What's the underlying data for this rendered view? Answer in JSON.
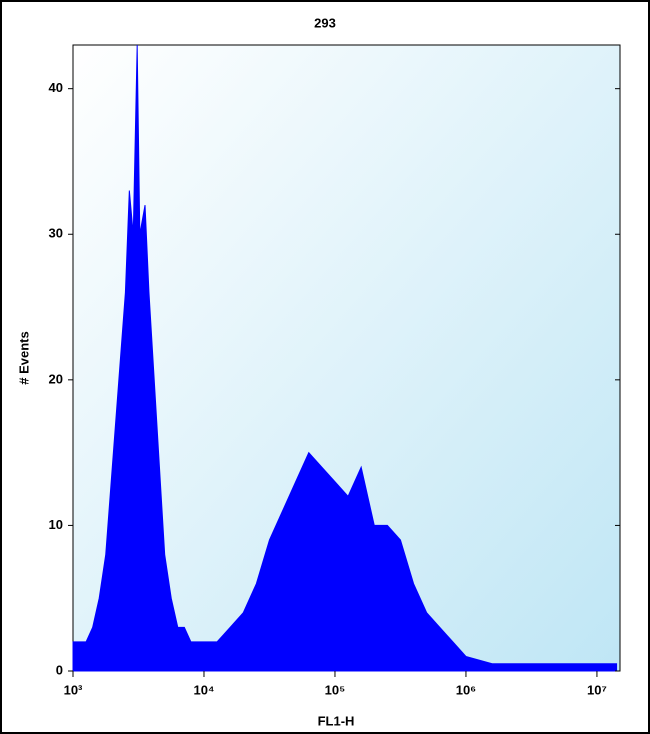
{
  "chart_data": {
    "type": "area",
    "title": "293",
    "x_label": "FL1-H",
    "y_label": "# Events",
    "x": [
      1000,
      1259,
      1413,
      1585,
      1778,
      1995,
      2239,
      2512,
      2692,
      2884,
      3090,
      3236,
      3548,
      3802,
      4169,
      4571,
      5012,
      5623,
      6310,
      7079,
      7943,
      10000,
      12589,
      15849,
      19953,
      25119,
      31623,
      39811,
      50119,
      63096,
      79433,
      100000,
      125893,
      158489,
      199526,
      251189,
      316228,
      398107,
      501187,
      630957,
      794328,
      1000000,
      1584893,
      3162278,
      10000000,
      14125375
    ],
    "values": [
      2,
      2,
      3,
      5,
      8,
      14,
      20,
      26,
      33,
      30,
      43,
      30,
      32,
      26,
      20,
      14,
      8,
      5,
      3,
      3,
      2,
      2,
      2,
      3,
      4,
      6,
      9,
      11,
      13,
      15,
      14,
      13,
      12,
      14,
      10,
      10,
      9,
      6,
      4,
      3,
      2,
      1,
      0.5,
      0.5,
      0.5,
      0.5
    ],
    "color": "#0000ff",
    "x_log": true,
    "xlim": [
      1000,
      15000000
    ],
    "ylim": [
      0,
      43
    ],
    "xticks": [
      {
        "value": 1000,
        "label": "10³"
      },
      {
        "value": 10000,
        "label": "10⁴"
      },
      {
        "value": 100000,
        "label": "10⁵"
      },
      {
        "value": 1000000,
        "label": "10⁶"
      },
      {
        "value": 10000000,
        "label": "10⁷"
      }
    ],
    "yticks": [
      0,
      10,
      20,
      30,
      40
    ]
  }
}
